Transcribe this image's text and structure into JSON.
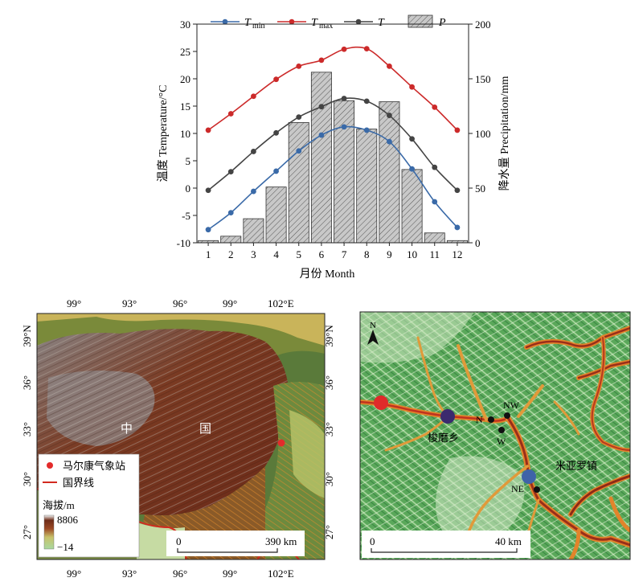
{
  "chart_data": {
    "type": "bar+line",
    "categories": [
      1,
      2,
      3,
      4,
      5,
      6,
      7,
      8,
      9,
      10,
      11,
      12
    ],
    "xlabel": "月份 Month",
    "ylabel_left": "温度 Temperature/°C",
    "ylabel_right": "降水量 Precipitation/mm",
    "ylim_left": [
      -10,
      30
    ],
    "ylim_right": [
      0,
      200
    ],
    "yticks_left": [
      -10,
      -5,
      0,
      5,
      10,
      15,
      20,
      25,
      30
    ],
    "yticks_right": [
      0,
      50,
      100,
      150,
      200
    ],
    "legend_position": "top",
    "series": [
      {
        "name": "T_min",
        "label_main": "T",
        "label_sub": "min",
        "type": "line",
        "axis": "left",
        "color": "#3a6aa8",
        "values": [
          -7.6,
          -4.5,
          -0.6,
          3.1,
          6.8,
          9.7,
          11.2,
          10.6,
          8.5,
          3.5,
          -2.5,
          -7.2
        ]
      },
      {
        "name": "T_max",
        "label_main": "T",
        "label_sub": "max",
        "type": "line",
        "axis": "left",
        "color": "#cc2a2a",
        "values": [
          10.6,
          13.6,
          16.8,
          19.9,
          22.3,
          23.4,
          25.4,
          25.5,
          22.3,
          18.5,
          14.8,
          10.6
        ]
      },
      {
        "name": "T",
        "label_main": "T",
        "label_sub": "",
        "type": "line",
        "axis": "left",
        "color": "#444444",
        "values": [
          -0.4,
          3.0,
          6.7,
          10.1,
          13.0,
          14.9,
          16.4,
          15.9,
          13.3,
          9.0,
          3.8,
          -0.4
        ]
      },
      {
        "name": "P",
        "label_main": "P",
        "label_sub": "",
        "type": "bar",
        "axis": "right",
        "color": "#bdbdbd",
        "values": [
          2,
          6,
          22,
          51,
          110,
          156,
          130,
          104,
          129,
          67,
          9,
          2
        ]
      }
    ]
  },
  "map_left": {
    "lon_labels_top": [
      "99°",
      "93°",
      "96°",
      "99°",
      "102°E"
    ],
    "lon_labels_bottom": [
      "99°",
      "93°",
      "96°",
      "99°",
      "102°E"
    ],
    "lat_labels_left": [
      "39°N",
      "36°",
      "33°",
      "30°",
      "27°"
    ],
    "lat_labels_right": [
      "39°N",
      "36°",
      "33°",
      "30°",
      "27°"
    ],
    "country_chars": [
      "中",
      "国"
    ],
    "legend": {
      "station_label": "马尔康气象站",
      "border_label": "国界线",
      "elevation_title": "海拔/m",
      "elevation_max": "8806",
      "elevation_min": "−14"
    },
    "scalebar": {
      "start": "0",
      "end": "390 km"
    },
    "colors": {
      "station": "#e32b2b",
      "border": "#d22a1f"
    }
  },
  "map_right": {
    "north_label": "N",
    "places": [
      {
        "name": "梭磨乡",
        "color": "#3b2a6e"
      },
      {
        "name": "米亚罗镇",
        "color": "#3f63a8"
      },
      {
        "name": "",
        "color": "#e02a2a"
      }
    ],
    "sample_points": [
      "N",
      "NW",
      "W",
      "NE"
    ],
    "scalebar": {
      "start": "0",
      "end": "40 km"
    }
  }
}
